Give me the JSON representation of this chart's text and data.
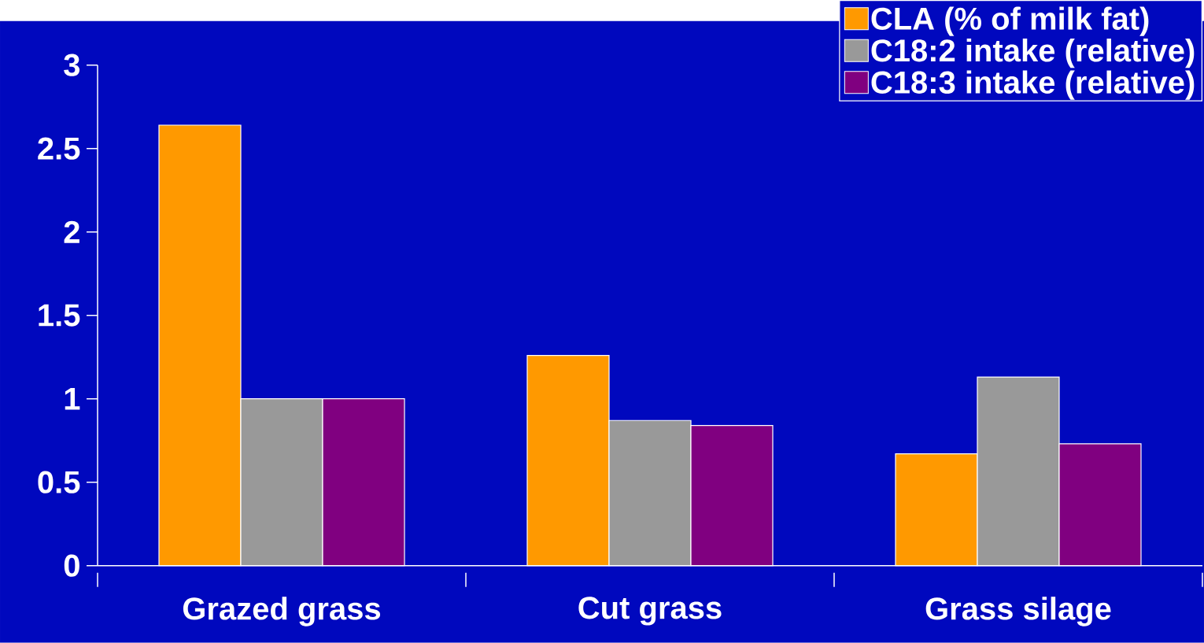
{
  "chart_data": {
    "type": "bar",
    "categories": [
      "Grazed grass",
      "Cut grass",
      "Grass silage"
    ],
    "series": [
      {
        "name": "CLA (% of milk fat)",
        "color": "#ff9900",
        "values": [
          2.64,
          1.26,
          0.67
        ]
      },
      {
        "name": "C18:2 intake (relative)",
        "color": "#999999",
        "values": [
          1.0,
          0.87,
          1.13
        ]
      },
      {
        "name": "C18:3 intake (relative)",
        "color": "#800080",
        "values": [
          1.0,
          0.84,
          0.73
        ]
      }
    ],
    "ylim": [
      0,
      3
    ],
    "yticks": [
      0,
      0.5,
      1,
      1.5,
      2,
      2.5,
      3
    ],
    "grid": false,
    "legend": "top right"
  }
}
